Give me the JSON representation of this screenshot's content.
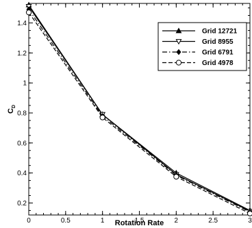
{
  "chart_data": {
    "type": "line",
    "xlabel": "Rotation Rate",
    "ylabel": "C",
    "ylabel_sub": "D",
    "xlim": [
      0,
      3
    ],
    "ylim": [
      0.12,
      1.53
    ],
    "x_ticks": [
      0,
      0.5,
      1,
      1.5,
      2,
      2.5,
      3
    ],
    "x_tick_labels": [
      "0",
      "0.5",
      "1",
      "1.5",
      "2",
      "2.5",
      "3"
    ],
    "y_ticks": [
      0.2,
      0.4,
      0.6,
      0.8,
      1.0,
      1.2,
      1.4
    ],
    "y_tick_labels": [
      "0.2",
      "0.4",
      "0.6",
      "0.8",
      "1",
      "1.2",
      "1.4"
    ],
    "grid": false,
    "legend_position": "top-right",
    "x": [
      0,
      1,
      2,
      3
    ],
    "series": [
      {
        "name": "Grid 12721",
        "values": [
          1.52,
          0.79,
          0.4,
          0.15
        ],
        "marker": "triangle-up-filled",
        "dash": "solid"
      },
      {
        "name": "Grid 8955",
        "values": [
          1.51,
          0.79,
          0.39,
          0.145
        ],
        "marker": "triangle-down-open",
        "dash": "solid"
      },
      {
        "name": "Grid 6791",
        "values": [
          1.49,
          0.78,
          0.385,
          0.14
        ],
        "marker": "diamond-filled",
        "dash": "dashdot"
      },
      {
        "name": "Grid 4978",
        "values": [
          1.47,
          0.77,
          0.375,
          0.13
        ],
        "marker": "circle-open",
        "dash": "dash"
      }
    ]
  }
}
